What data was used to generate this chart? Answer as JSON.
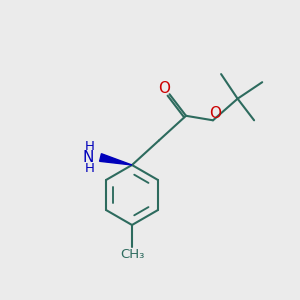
{
  "bg_color": "#ebebeb",
  "bond_color": "#2d6b5e",
  "bond_width": 1.5,
  "o_color": "#cc0000",
  "n_color": "#0000bb",
  "figsize": [
    3.0,
    3.0
  ],
  "dpi": 100,
  "xlim": [
    0,
    10
  ],
  "ylim": [
    0,
    10
  ]
}
